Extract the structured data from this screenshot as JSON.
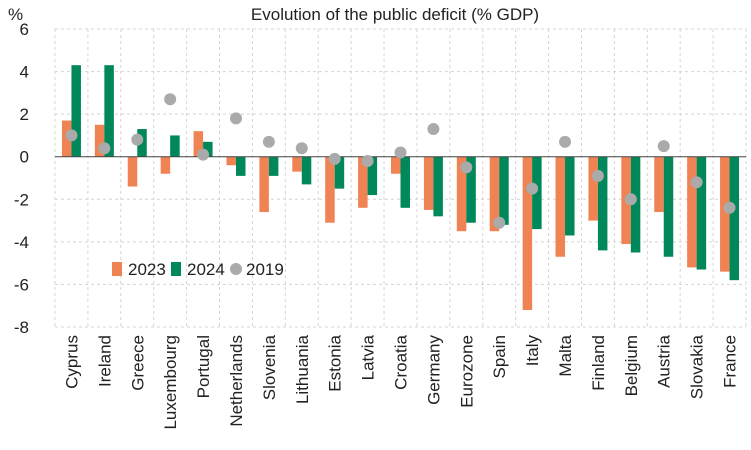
{
  "chart_data": {
    "type": "bar",
    "title": "Evolution of the public deficit (% GDP)",
    "ylabel": "%",
    "xlabel": "",
    "ylim": [
      -8,
      6
    ],
    "yticks": [
      -8,
      -6,
      -4,
      -2,
      0,
      2,
      4,
      6
    ],
    "grid": true,
    "legend_position": "lower-left",
    "categories": [
      "Cyprus",
      "Ireland",
      "Greece",
      "Luxembourg",
      "Portugal",
      "Netherlands",
      "Slovenia",
      "Lithuania",
      "Estonia",
      "Latvia",
      "Croatia",
      "Germany",
      "Eurozone",
      "Spain",
      "Italy",
      "Malta",
      "Finland",
      "Belgium",
      "Austria",
      "Slovakia",
      "France"
    ],
    "series": [
      {
        "name": "2023",
        "kind": "bar",
        "color": "#EF8354",
        "values": [
          1.7,
          1.5,
          -1.4,
          -0.8,
          1.2,
          -0.4,
          -2.6,
          -0.7,
          -3.1,
          -2.4,
          -0.8,
          -2.5,
          -3.5,
          -3.5,
          -7.2,
          -4.7,
          -3.0,
          -4.1,
          -2.6,
          -5.2,
          -5.4
        ]
      },
      {
        "name": "2024",
        "kind": "bar",
        "color": "#00875A",
        "values": [
          4.3,
          4.3,
          1.3,
          1.0,
          0.7,
          -0.9,
          -0.9,
          -1.3,
          -1.5,
          -1.8,
          -2.4,
          -2.8,
          -3.1,
          -3.2,
          -3.4,
          -3.7,
          -4.4,
          -4.5,
          -4.7,
          -5.3,
          -5.8
        ]
      },
      {
        "name": "2019",
        "kind": "point",
        "color": "#AAAAAA",
        "values": [
          1.0,
          0.4,
          0.8,
          2.7,
          0.1,
          1.8,
          0.7,
          0.4,
          -0.1,
          -0.2,
          0.2,
          1.3,
          -0.5,
          -3.1,
          -1.5,
          0.7,
          -0.9,
          -2.0,
          0.5,
          -1.2,
          -2.4
        ]
      }
    ]
  }
}
